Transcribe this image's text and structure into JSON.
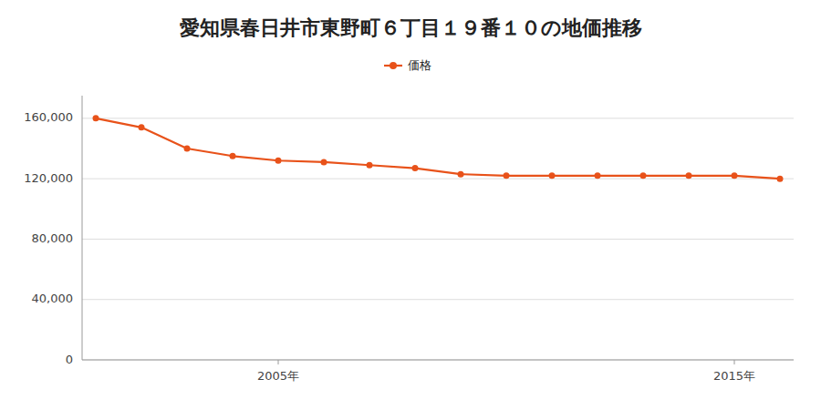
{
  "chart_data": {
    "type": "line",
    "title": "愛知県春日井市東野町６丁目１９番１０の地価推移",
    "x": [
      2001,
      2002,
      2003,
      2004,
      2005,
      2006,
      2007,
      2008,
      2009,
      2010,
      2011,
      2012,
      2013,
      2014,
      2015,
      2016
    ],
    "series": [
      {
        "name": "価格",
        "color": "#e8521a",
        "values": [
          160000,
          154000,
          140000,
          135000,
          132000,
          131000,
          129000,
          127000,
          123000,
          122000,
          122000,
          122000,
          122000,
          122000,
          122000,
          120000
        ]
      }
    ],
    "xlim": [
      2000.7,
      2016.3
    ],
    "xticks": [
      {
        "value": 2005,
        "label": "2005年"
      },
      {
        "value": 2015,
        "label": "2015年"
      }
    ],
    "ylim": [
      0,
      175000
    ],
    "yticks": [
      0,
      {
        "value": 40000,
        "label": "40,000"
      },
      {
        "value": 80000,
        "label": "80,000"
      },
      {
        "value": 120000,
        "label": "120,000"
      },
      {
        "value": 160000,
        "label": "160,000"
      }
    ],
    "grid": true,
    "legend": "top",
    "marker": "circle",
    "line_style": "solid"
  }
}
